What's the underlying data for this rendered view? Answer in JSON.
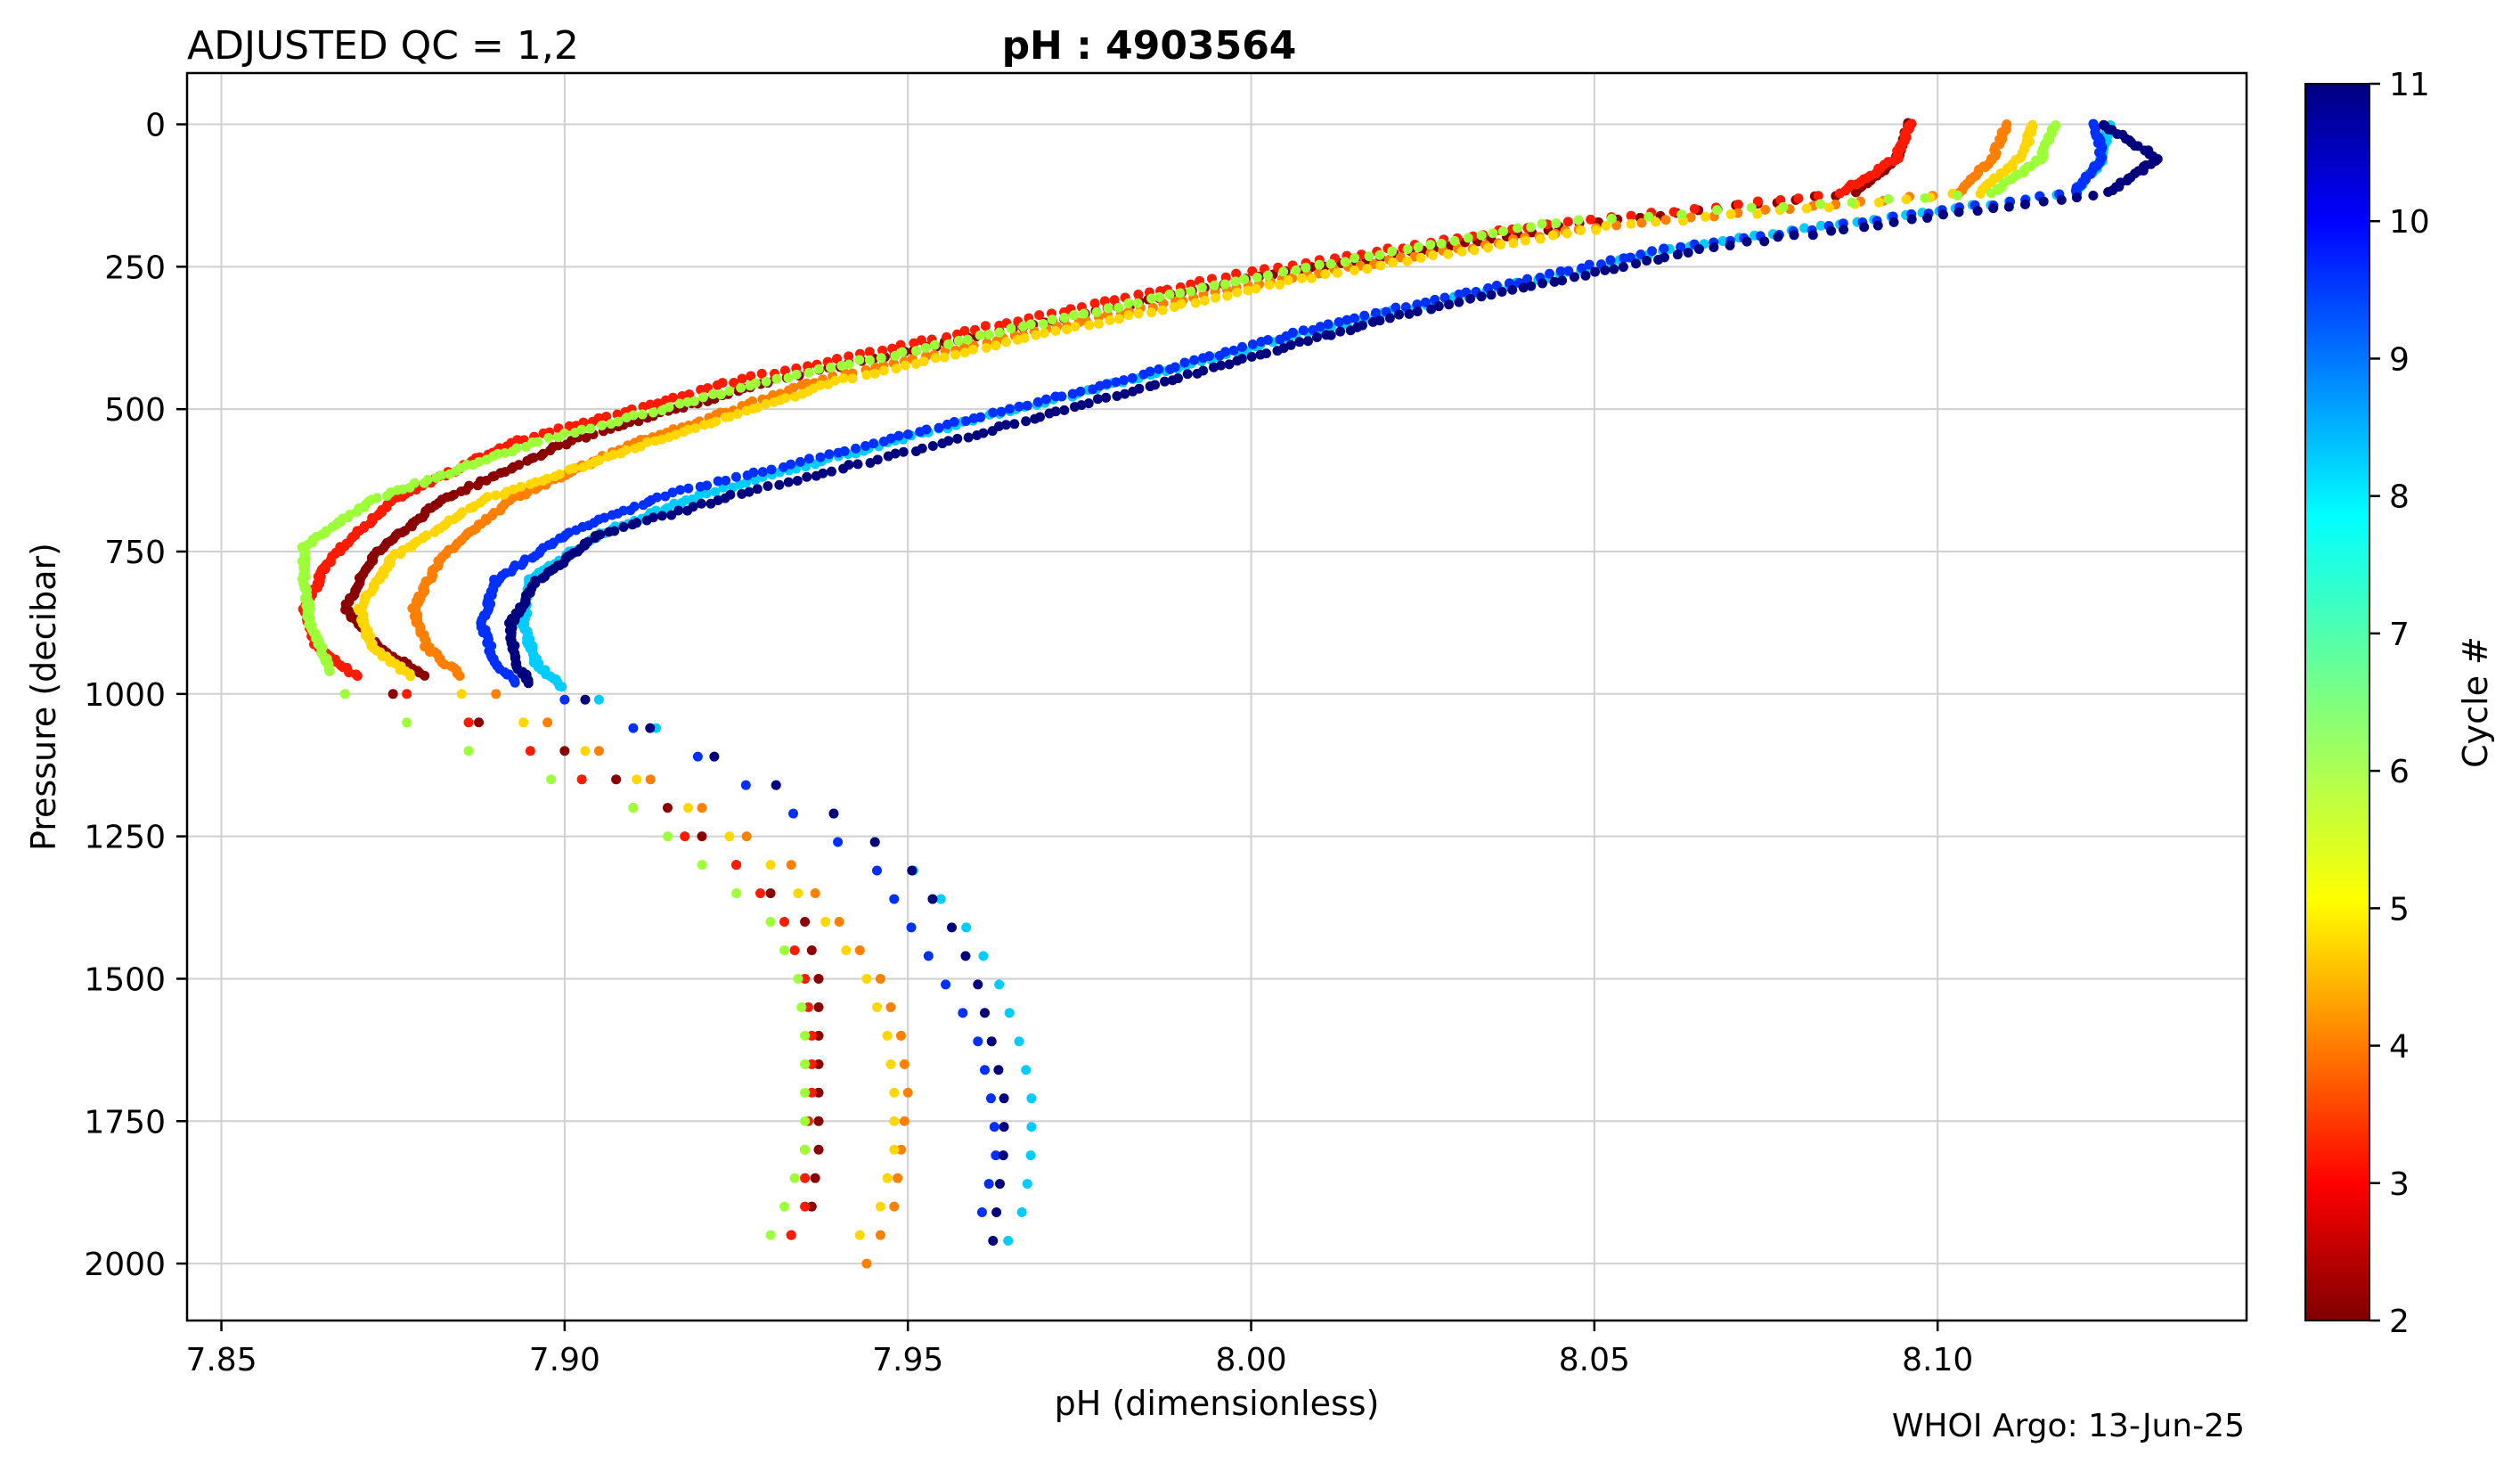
{
  "chart_data": {
    "type": "scatter",
    "title_left": "ADJUSTED QC = 1,2",
    "title": "pH : 4903564",
    "xlabel": "pH  (dimensionless)",
    "ylabel": "Pressure  (decibar)",
    "xlim": [
      7.845,
      8.145
    ],
    "ylim": [
      2100,
      -90
    ],
    "y_inverted": true,
    "xticks": [
      7.85,
      7.9,
      7.95,
      8.0,
      8.05,
      8.1
    ],
    "xtick_labels": [
      "7.85",
      "7.90",
      "7.95",
      "8.00",
      "8.05",
      "8.10"
    ],
    "yticks": [
      0,
      250,
      500,
      750,
      1000,
      1250,
      1500,
      1750,
      2000
    ],
    "ytick_labels": [
      "0",
      "250",
      "500",
      "750",
      "1000",
      "1250",
      "1500",
      "1750",
      "2000"
    ],
    "grid": true,
    "colorbar": {
      "label": "Cycle #",
      "min": 2,
      "max": 11,
      "colormap": "jet",
      "ticks": [
        2,
        3,
        4,
        5,
        6,
        7,
        8,
        9,
        10,
        11
      ],
      "tick_labels": [
        "2",
        "3",
        "4",
        "5",
        "6",
        "7",
        "8",
        "9",
        "10",
        "11"
      ]
    },
    "series": [
      {
        "cycle": 2,
        "color": "#8b0000",
        "profile": [
          [
            8.096,
            0
          ],
          [
            8.094,
            60
          ],
          [
            8.088,
            120
          ],
          [
            8.045,
            180
          ],
          [
            8.0,
            270
          ],
          [
            7.965,
            360
          ],
          [
            7.93,
            450
          ],
          [
            7.9,
            560
          ],
          [
            7.882,
            660
          ],
          [
            7.872,
            760
          ],
          [
            7.868,
            850
          ],
          [
            7.873,
            920
          ],
          [
            7.88,
            970
          ]
        ],
        "deep": [
          [
            7.875,
            1000
          ],
          [
            7.9,
            1100
          ],
          [
            7.915,
            1200
          ],
          [
            7.925,
            1300
          ],
          [
            7.935,
            1400
          ],
          [
            7.937,
            1500
          ],
          [
            7.937,
            1600
          ],
          [
            7.937,
            1700
          ],
          [
            7.937,
            1800
          ],
          [
            7.936,
            1900
          ],
          [
            7.933,
            1950
          ]
        ]
      },
      {
        "cycle": 3,
        "color": "#ff1a00",
        "profile": [
          [
            8.096,
            0
          ],
          [
            8.094,
            60
          ],
          [
            8.086,
            120
          ],
          [
            8.04,
            180
          ],
          [
            7.995,
            270
          ],
          [
            7.96,
            360
          ],
          [
            7.925,
            450
          ],
          [
            7.892,
            560
          ],
          [
            7.875,
            660
          ],
          [
            7.866,
            760
          ],
          [
            7.862,
            850
          ],
          [
            7.864,
            920
          ],
          [
            7.87,
            970
          ]
        ],
        "deep": [
          [
            7.877,
            1000
          ],
          [
            7.895,
            1100
          ],
          [
            7.91,
            1200
          ],
          [
            7.925,
            1300
          ],
          [
            7.932,
            1400
          ],
          [
            7.935,
            1500
          ],
          [
            7.936,
            1600
          ],
          [
            7.936,
            1700
          ],
          [
            7.935,
            1800
          ],
          [
            7.935,
            1900
          ],
          [
            7.933,
            1950
          ]
        ]
      },
      {
        "cycle": 4,
        "color": "#ff7f00",
        "profile": [
          [
            8.11,
            0
          ],
          [
            8.108,
            60
          ],
          [
            8.103,
            120
          ],
          [
            8.05,
            180
          ],
          [
            8.005,
            270
          ],
          [
            7.97,
            360
          ],
          [
            7.937,
            450
          ],
          [
            7.91,
            560
          ],
          [
            7.892,
            660
          ],
          [
            7.882,
            760
          ],
          [
            7.878,
            850
          ],
          [
            7.88,
            920
          ],
          [
            7.885,
            970
          ]
        ],
        "deep": [
          [
            7.89,
            1000
          ],
          [
            7.905,
            1100
          ],
          [
            7.92,
            1200
          ],
          [
            7.933,
            1300
          ],
          [
            7.94,
            1400
          ],
          [
            7.946,
            1500
          ],
          [
            7.949,
            1600
          ],
          [
            7.95,
            1700
          ],
          [
            7.949,
            1800
          ],
          [
            7.948,
            1900
          ],
          [
            7.944,
            2000
          ]
        ]
      },
      {
        "cycle": 5,
        "color": "#ffd700",
        "profile": [
          [
            8.114,
            0
          ],
          [
            8.112,
            60
          ],
          [
            8.106,
            120
          ],
          [
            8.052,
            180
          ],
          [
            8.008,
            270
          ],
          [
            7.973,
            360
          ],
          [
            7.94,
            450
          ],
          [
            7.912,
            560
          ],
          [
            7.888,
            660
          ],
          [
            7.875,
            760
          ],
          [
            7.87,
            850
          ],
          [
            7.872,
            920
          ],
          [
            7.878,
            970
          ]
        ],
        "deep": [
          [
            7.885,
            1000
          ],
          [
            7.903,
            1100
          ],
          [
            7.918,
            1200
          ],
          [
            7.93,
            1300
          ],
          [
            7.938,
            1400
          ],
          [
            7.944,
            1500
          ],
          [
            7.947,
            1600
          ],
          [
            7.948,
            1700
          ],
          [
            7.948,
            1800
          ],
          [
            7.946,
            1900
          ],
          [
            7.943,
            1950
          ]
        ]
      },
      {
        "cycle": 6,
        "color": "#9cff38",
        "profile": [
          [
            8.117,
            0
          ],
          [
            8.115,
            60
          ],
          [
            8.108,
            120
          ],
          [
            8.045,
            170
          ],
          [
            8.0,
            270
          ],
          [
            7.965,
            360
          ],
          [
            7.93,
            450
          ],
          [
            7.895,
            560
          ],
          [
            7.872,
            660
          ],
          [
            7.862,
            740
          ],
          [
            7.862,
            800
          ],
          [
            7.863,
            880
          ],
          [
            7.866,
            960
          ]
        ],
        "deep": [
          [
            7.868,
            1000
          ],
          [
            7.886,
            1100
          ],
          [
            7.91,
            1200
          ],
          [
            7.92,
            1300
          ],
          [
            7.93,
            1400
          ],
          [
            7.934,
            1500
          ],
          [
            7.935,
            1600
          ],
          [
            7.935,
            1700
          ],
          [
            7.935,
            1800
          ],
          [
            7.932,
            1900
          ],
          [
            7.93,
            1950
          ]
        ]
      },
      {
        "cycle": 8,
        "color": "#00ccff",
        "profile": [
          [
            8.125,
            0
          ],
          [
            8.124,
            60
          ],
          [
            8.12,
            120
          ],
          [
            8.065,
            210
          ],
          [
            8.02,
            330
          ],
          [
            7.982,
            450
          ],
          [
            7.95,
            550
          ],
          [
            7.92,
            650
          ],
          [
            7.905,
            720
          ],
          [
            7.895,
            800
          ],
          [
            7.894,
            880
          ],
          [
            7.896,
            950
          ],
          [
            7.9,
            990
          ]
        ],
        "deep": [
          [
            7.905,
            1010
          ],
          [
            7.92,
            1100
          ],
          [
            7.938,
            1200
          ],
          [
            7.95,
            1300
          ],
          [
            7.958,
            1400
          ],
          [
            7.963,
            1500
          ],
          [
            7.966,
            1600
          ],
          [
            7.968,
            1700
          ],
          [
            7.968,
            1800
          ],
          [
            7.967,
            1900
          ],
          [
            7.963,
            2000
          ]
        ]
      },
      {
        "cycle": 10,
        "color": "#0030ff",
        "profile": [
          [
            8.123,
            0
          ],
          [
            8.124,
            60
          ],
          [
            8.12,
            120
          ],
          [
            8.06,
            220
          ],
          [
            8.015,
            340
          ],
          [
            7.978,
            460
          ],
          [
            7.945,
            560
          ],
          [
            7.915,
            650
          ],
          [
            7.9,
            720
          ],
          [
            7.89,
            800
          ],
          [
            7.888,
            880
          ],
          [
            7.89,
            950
          ],
          [
            7.893,
            980
          ]
        ],
        "deep": [
          [
            7.9,
            1010
          ],
          [
            7.918,
            1100
          ],
          [
            7.932,
            1200
          ],
          [
            7.945,
            1300
          ],
          [
            7.95,
            1400
          ],
          [
            7.955,
            1500
          ],
          [
            7.96,
            1600
          ],
          [
            7.962,
            1700
          ],
          [
            7.963,
            1800
          ],
          [
            7.961,
            1900
          ],
          [
            7.96,
            1950
          ]
        ]
      },
      {
        "cycle": 11,
        "color": "#00007f",
        "profile": [
          [
            8.124,
            0
          ],
          [
            8.132,
            60
          ],
          [
            8.125,
            120
          ],
          [
            8.065,
            220
          ],
          [
            8.02,
            340
          ],
          [
            7.985,
            460
          ],
          [
            7.955,
            560
          ],
          [
            7.925,
            650
          ],
          [
            7.905,
            720
          ],
          [
            7.896,
            800
          ],
          [
            7.892,
            880
          ],
          [
            7.893,
            950
          ],
          [
            7.895,
            980
          ]
        ],
        "deep": [
          [
            7.903,
            1010
          ],
          [
            7.92,
            1100
          ],
          [
            7.938,
            1200
          ],
          [
            7.95,
            1300
          ],
          [
            7.956,
            1400
          ],
          [
            7.96,
            1500
          ],
          [
            7.962,
            1600
          ],
          [
            7.964,
            1700
          ],
          [
            7.964,
            1800
          ],
          [
            7.963,
            1900
          ],
          [
            7.962,
            2000
          ]
        ]
      }
    ],
    "footer": "WHOI Argo: 13-Jun-25"
  }
}
